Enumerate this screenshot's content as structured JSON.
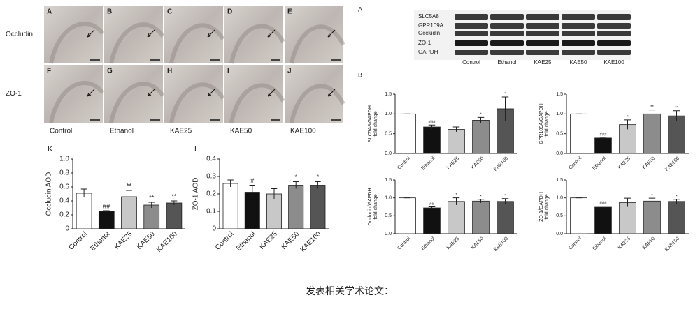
{
  "micrographs": {
    "panels": [
      "A",
      "B",
      "C",
      "D",
      "E",
      "F",
      "G",
      "H",
      "I",
      "J"
    ],
    "rows": [
      "Occludin",
      "ZO-1"
    ],
    "columns": [
      "Control",
      "Ethanol",
      "KAE25",
      "KAE50",
      "KAE100"
    ]
  },
  "blot": {
    "label": "A",
    "bands": [
      "SLC5A8",
      "GPR109A",
      "Occludin",
      "ZO-1",
      "GAPDH"
    ],
    "lanes": [
      "Control",
      "Ethanol",
      "KAE25",
      "KAE50",
      "KAE100"
    ]
  },
  "quant_label": "B",
  "chart_data": [
    {
      "type": "bar",
      "label": "K",
      "ylabel": [
        "Occludin AOD"
      ],
      "categories": [
        "Control",
        "Ethanol",
        "KAE25",
        "KAE50",
        "KAE100"
      ],
      "values": [
        0.51,
        0.25,
        0.46,
        0.34,
        0.37
      ],
      "errors": [
        0.06,
        0.01,
        0.09,
        0.04,
        0.03
      ],
      "sig": [
        null,
        "##",
        "**",
        "**",
        "**"
      ],
      "colors": [
        "#ffffff",
        "#111111",
        "#c8c8c8",
        "#8c8c8c",
        "#555555"
      ],
      "ylim": [
        0,
        1
      ],
      "yticks": [
        0,
        0.2,
        0.4,
        0.6,
        0.8,
        {
          "value": 1,
          "label": "1.0"
        }
      ]
    },
    {
      "type": "bar",
      "label": "L",
      "ylabel": [
        "ZO-1 AOD"
      ],
      "categories": [
        "Control",
        "Ethanol",
        "KAE25",
        "KAE50",
        "KAE100"
      ],
      "values": [
        0.26,
        0.21,
        0.2,
        0.25,
        0.25
      ],
      "errors": [
        0.02,
        0.04,
        0.03,
        0.02,
        0.02
      ],
      "sig": [
        null,
        "#",
        null,
        "*",
        "*"
      ],
      "colors": [
        "#ffffff",
        "#111111",
        "#c8c8c8",
        "#8c8c8c",
        "#555555"
      ],
      "ylim": [
        0,
        0.4
      ],
      "yticks": [
        0,
        0.1,
        0.2,
        0.3,
        0.4
      ]
    },
    {
      "type": "bar",
      "ylabel": [
        "SLC5A8/GAPDH",
        "fold change"
      ],
      "categories": [
        "Control",
        "Ethanol",
        "KAE25",
        "KAE50",
        "KAE100"
      ],
      "values": [
        1,
        0.67,
        0.61,
        0.84,
        1.13
      ],
      "errors": [
        0,
        0.05,
        0.06,
        0.07,
        0.3
      ],
      "sig": [
        null,
        "###",
        null,
        "*",
        "*"
      ],
      "colors": [
        "#ffffff",
        "#111111",
        "#c8c8c8",
        "#8c8c8c",
        "#555555"
      ],
      "ylim": [
        0,
        1.5
      ],
      "yticks": [
        {
          "value": 0,
          "label": "0.0"
        },
        0.5,
        {
          "value": 1,
          "label": "1.0"
        },
        1.5
      ]
    },
    {
      "type": "bar",
      "ylabel": [
        "GPR109A/GAPDH",
        "fold change"
      ],
      "categories": [
        "Control",
        "Ethanol",
        "KAE25",
        "KAE50",
        "KAE100"
      ],
      "values": [
        1,
        0.39,
        0.73,
        1,
        0.95
      ],
      "errors": [
        0,
        0.02,
        0.12,
        0.1,
        0.13
      ],
      "sig": [
        null,
        "###",
        "*",
        "**",
        "**"
      ],
      "colors": [
        "#ffffff",
        "#111111",
        "#c8c8c8",
        "#8c8c8c",
        "#555555"
      ],
      "ylim": [
        0,
        1.5
      ],
      "yticks": [
        {
          "value": 0,
          "label": "0.0"
        },
        0.5,
        {
          "value": 1,
          "label": "1.0"
        },
        1.5
      ]
    },
    {
      "type": "bar",
      "ylabel": [
        "Occludin/GAPDH",
        "fold change"
      ],
      "categories": [
        "Control",
        "Ethanol",
        "KAE25",
        "KAE50",
        "KAE100"
      ],
      "values": [
        1,
        0.72,
        0.9,
        0.91,
        0.9
      ],
      "errors": [
        0,
        0.03,
        0.1,
        0.05,
        0.08
      ],
      "sig": [
        null,
        "##",
        "*",
        "*",
        "*"
      ],
      "colors": [
        "#ffffff",
        "#111111",
        "#c8c8c8",
        "#8c8c8c",
        "#555555"
      ],
      "ylim": [
        0,
        1.5
      ],
      "yticks": [
        {
          "value": 0,
          "label": "0.0"
        },
        0.5,
        {
          "value": 1,
          "label": "1.0"
        },
        1.5
      ]
    },
    {
      "type": "bar",
      "ylabel": [
        "ZO-1/GAPDH",
        "fold change"
      ],
      "categories": [
        "Control",
        "Ethanol",
        "KAE25",
        "KAE50",
        "KAE100"
      ],
      "values": [
        1,
        0.74,
        0.87,
        0.91,
        0.9
      ],
      "errors": [
        0,
        0.03,
        0.12,
        0.08,
        0.06
      ],
      "sig": [
        null,
        "###",
        null,
        "*",
        "*"
      ],
      "colors": [
        "#ffffff",
        "#111111",
        "#c8c8c8",
        "#8c8c8c",
        "#555555"
      ],
      "ylim": [
        0,
        1.5
      ],
      "yticks": [
        {
          "value": 0,
          "label": "0.0"
        },
        0.5,
        {
          "value": 1,
          "label": "1.0"
        },
        1.5
      ]
    }
  ],
  "caption": "发表相关学术论文："
}
